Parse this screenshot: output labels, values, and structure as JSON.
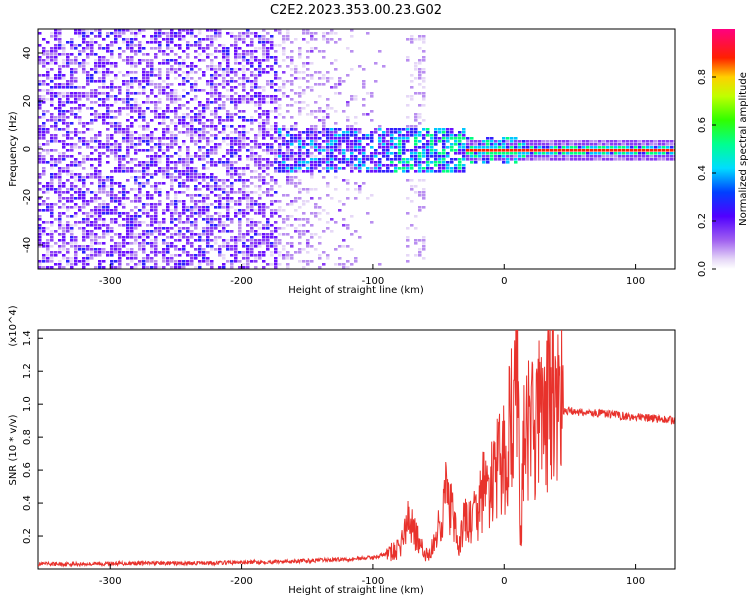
{
  "title": "C2E2.2023.353.00.23.G02",
  "chart_data": [
    {
      "type": "heatmap",
      "xlabel": "Height of straight line (km)",
      "ylabel": "Frequency (Hz)",
      "xlim": [
        -355,
        130
      ],
      "ylim": [
        -50,
        50
      ],
      "x_ticks": [
        "-300",
        "-200",
        "-100",
        "0",
        "100"
      ],
      "x_tick_values": [
        -300,
        -200,
        -100,
        0,
        100
      ],
      "y_ticks": [
        "-40",
        "-20",
        "0",
        "20",
        "40"
      ],
      "y_tick_values": [
        -40,
        -20,
        0,
        20,
        40
      ],
      "colorbar": {
        "label": "Normalized spectral amplitude",
        "range": [
          0.0,
          1.0
        ],
        "ticks": [
          "0.0",
          "0.2",
          "0.4",
          "0.6",
          "0.8"
        ],
        "tick_values": [
          0.0,
          0.2,
          0.4,
          0.6,
          0.8
        ],
        "colormap": "rainbow (white-violet-blue-cyan-green-yellow-red-magenta)"
      },
      "regions": [
        {
          "x_range": [
            -355,
            -175
          ],
          "freq_range": [
            -50,
            50
          ],
          "amplitude": 0.1,
          "description": "broadband noise"
        },
        {
          "x_range": [
            -175,
            -90
          ],
          "freq_range": [
            -50,
            50
          ],
          "amplitude": 0.05,
          "description": "fading noise"
        },
        {
          "x_range": [
            -175,
            -30
          ],
          "freq_range": [
            -10,
            10
          ],
          "amplitude": 0.3,
          "description": "emerging carrier"
        },
        {
          "x_range": [
            -30,
            130
          ],
          "freq_range": [
            -2,
            2
          ],
          "amplitude": 0.9,
          "description": "narrow carrier line"
        }
      ]
    },
    {
      "type": "line",
      "xlabel": "Height of straight line (km)",
      "ylabel": "SNR (10 * v/v)",
      "y_multiplier": "(x10^4)",
      "xlim": [
        -355,
        130
      ],
      "ylim": [
        0,
        14500
      ],
      "x_ticks": [
        "-300",
        "-200",
        "-100",
        "0",
        "100"
      ],
      "x_tick_values": [
        -300,
        -200,
        -100,
        0,
        100
      ],
      "y_ticks": [
        "0.2",
        "0.4",
        "0.6",
        "0.8",
        "1.0",
        "1.2",
        "1.4"
      ],
      "y_tick_values": [
        2000,
        4000,
        6000,
        8000,
        10000,
        12000,
        14000
      ],
      "series": [
        {
          "color": "#e8322c",
          "x": [
            -355,
            -320,
            -280,
            -240,
            -200,
            -175,
            -150,
            -120,
            -100,
            -90,
            -80,
            -75,
            -70,
            -65,
            -60,
            -55,
            -50,
            -45,
            -40,
            -35,
            -30,
            -25,
            -20,
            -15,
            -10,
            -5,
            0,
            5,
            8,
            10,
            12,
            15,
            20,
            25,
            30,
            35,
            40,
            45,
            50,
            60,
            80,
            100,
            120,
            130
          ],
          "y": [
            300,
            300,
            350,
            350,
            400,
            450,
            500,
            600,
            700,
            900,
            1200,
            2500,
            3000,
            1500,
            800,
            1200,
            2500,
            4500,
            3500,
            1200,
            3000,
            2800,
            3500,
            5000,
            5000,
            6000,
            6500,
            9000,
            10000,
            14500,
            1000,
            7500,
            8500,
            9000,
            9800,
            10000,
            10200,
            9600,
            9600,
            9500,
            9400,
            9200,
            9100,
            9000
          ]
        }
      ]
    }
  ]
}
